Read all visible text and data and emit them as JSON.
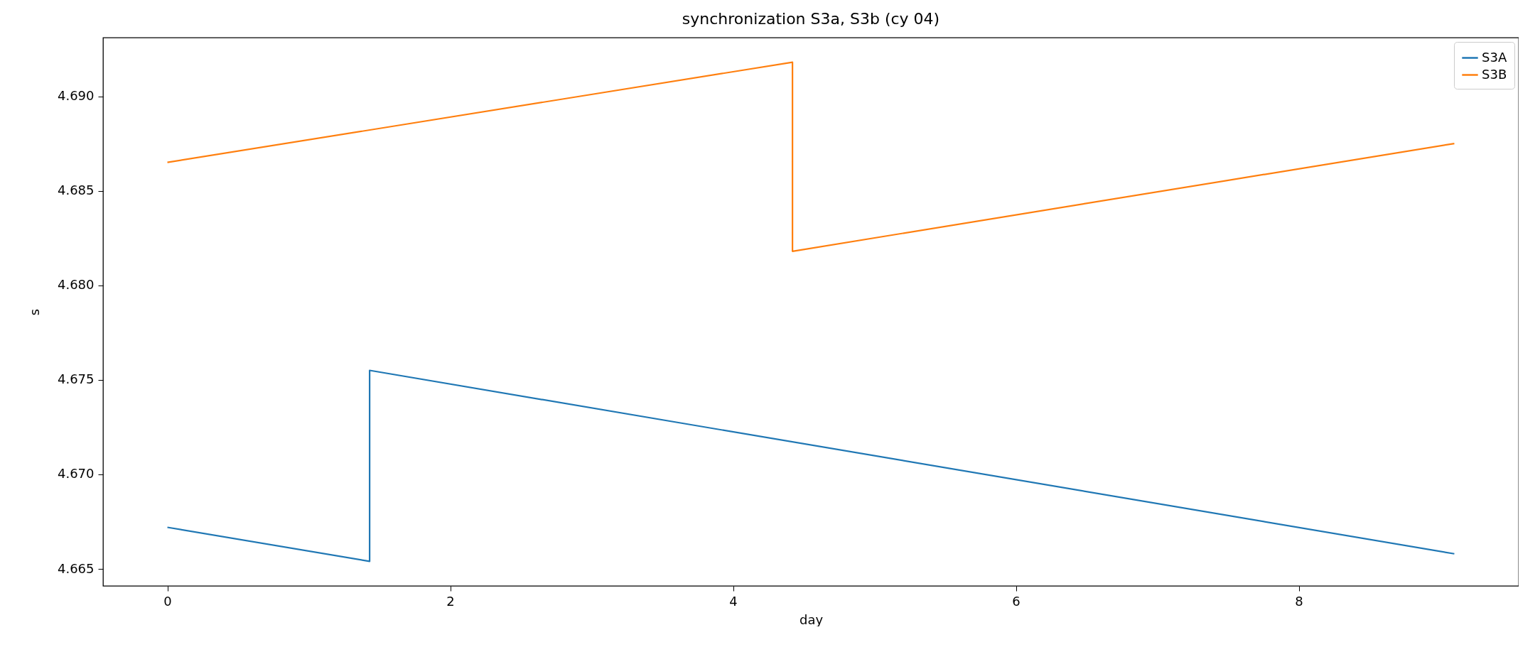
{
  "chart_data": {
    "type": "line",
    "title": "synchronization S3a, S3b (cy 04)",
    "xlabel": "day",
    "ylabel": "s",
    "xlim": [
      -0.455,
      9.555
    ],
    "xticks": [
      0,
      2,
      4,
      6,
      8
    ],
    "ylim": [
      4.6641,
      4.6931
    ],
    "yticks": [
      4.665,
      {
        "value": 4.67,
        "label": "4.670"
      },
      4.675,
      {
        "value": 4.68,
        "label": "4.680"
      },
      4.685,
      {
        "value": 4.69,
        "label": "4.690"
      }
    ],
    "legend": "top right",
    "grid": false,
    "series": [
      {
        "name": "S3A",
        "color": "#1f77b4",
        "x": [
          0,
          1.43,
          1.43,
          9.1
        ],
        "values": [
          4.6672,
          4.6654,
          4.6755,
          4.6658
        ]
      },
      {
        "name": "S3B",
        "color": "#ff7f0e",
        "x": [
          0,
          4.42,
          4.42,
          9.1
        ],
        "values": [
          4.6865,
          4.6918,
          4.6818,
          4.6875
        ]
      }
    ]
  }
}
